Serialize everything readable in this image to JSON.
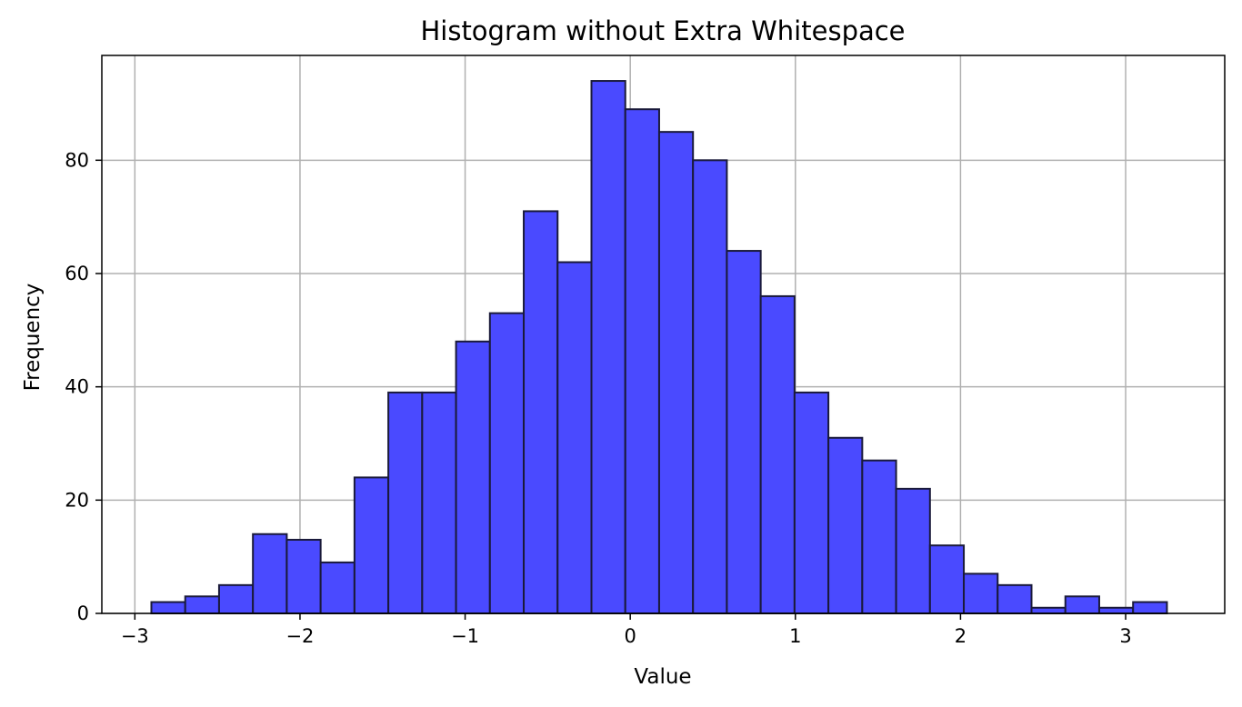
{
  "chart_data": {
    "type": "bar",
    "subtype": "histogram",
    "title": "Histogram without Extra Whitespace",
    "xlabel": "Value",
    "ylabel": "Frequency",
    "xlim": [
      -3.2,
      3.6
    ],
    "ylim": [
      0,
      98.5
    ],
    "grid": true,
    "x_ticks": [
      -3,
      -2,
      -1,
      0,
      1,
      2,
      3
    ],
    "x_tick_labels": [
      "−3",
      "−2",
      "−1",
      "0",
      "1",
      "2",
      "3"
    ],
    "y_ticks": [
      0,
      20,
      40,
      60,
      80
    ],
    "y_tick_labels": [
      "0",
      "20",
      "40",
      "60",
      "80"
    ],
    "bin_start": -2.9,
    "bin_width": 0.205,
    "values": [
      2,
      3,
      5,
      14,
      13,
      9,
      24,
      39,
      39,
      48,
      53,
      71,
      62,
      94,
      89,
      85,
      80,
      64,
      56,
      39,
      31,
      27,
      22,
      12,
      7,
      5,
      1,
      3,
      1,
      2
    ],
    "bar_color": "#4a4aff",
    "edge_color": "#1a1a3a",
    "grid_color": "#b0b0b0"
  }
}
